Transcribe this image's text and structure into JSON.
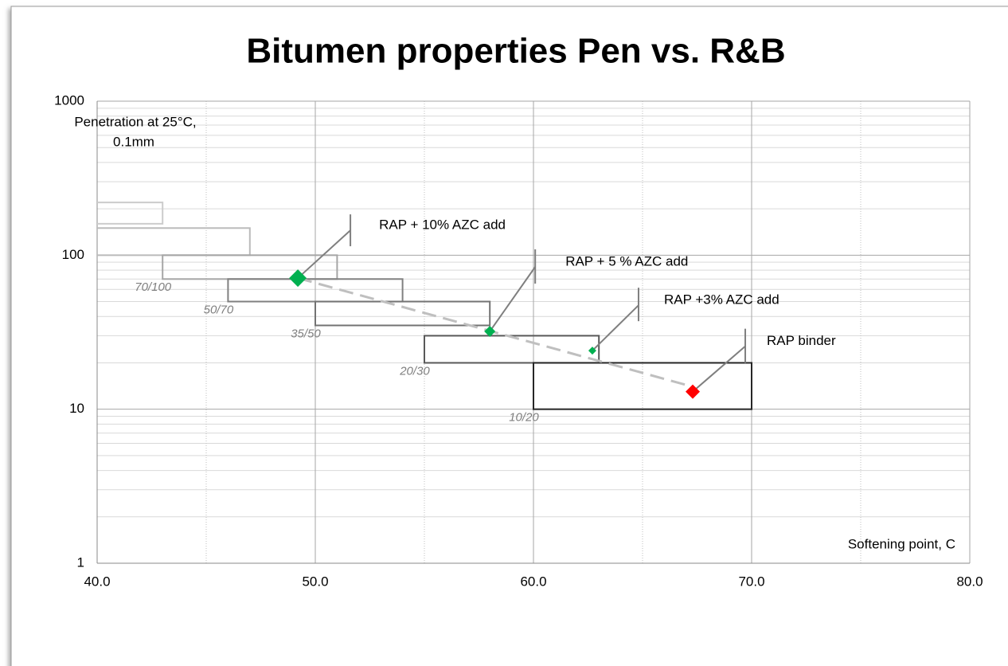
{
  "chart_data": {
    "type": "scatter",
    "title": "Bitumen properties Pen vs. R&B",
    "xlabel": "Softening point, C",
    "ylabel": [
      "Penetration at 25°C,",
      "0.1mm"
    ],
    "xlim": [
      40,
      80
    ],
    "ylim": [
      1,
      1000
    ],
    "ylog": true,
    "xticks": [
      {
        "value": 40,
        "label": "40.0"
      },
      {
        "value": 50,
        "label": "50.0"
      },
      {
        "value": 60,
        "label": "60.0"
      },
      {
        "value": 70,
        "label": "70.0"
      },
      {
        "value": 80,
        "label": "80.0"
      }
    ],
    "xminor": [
      45,
      55,
      65,
      75
    ],
    "yticks": [
      1,
      10,
      100,
      1000
    ],
    "yminor": [
      2,
      3,
      4,
      5,
      6,
      7,
      8,
      9,
      20,
      30,
      40,
      50,
      60,
      70,
      80,
      90,
      200,
      300,
      400,
      500,
      600,
      700,
      800,
      900
    ],
    "grid": true,
    "grades": [
      {
        "name": null,
        "x": [
          35,
          43
        ],
        "y": [
          160,
          220
        ],
        "color": "#cccccc"
      },
      {
        "name": null,
        "x": [
          39,
          47
        ],
        "y": [
          100,
          150
        ],
        "color": "#bbbbbb"
      },
      {
        "name": "70/100",
        "x": [
          43,
          51
        ],
        "y": [
          70,
          100
        ],
        "color": "#a6a6a6"
      },
      {
        "name": "50/70",
        "x": [
          46,
          54
        ],
        "y": [
          50,
          70
        ],
        "color": "#808080"
      },
      {
        "name": "35/50",
        "x": [
          50,
          58
        ],
        "y": [
          35,
          50
        ],
        "color": "#737373"
      },
      {
        "name": "20/30",
        "x": [
          55,
          63
        ],
        "y": [
          20,
          30
        ],
        "color": "#595959"
      },
      {
        "name": "10/20",
        "x": [
          60,
          70
        ],
        "y": [
          10,
          20
        ],
        "color": "#262626"
      }
    ],
    "points": {
      "x": [
        49.2,
        58.0,
        62.7,
        67.3
      ],
      "values": [
        71,
        32,
        24,
        13
      ],
      "colors": [
        "#00b050",
        "#00b050",
        "#00b050",
        "#ff0000"
      ],
      "sizes": [
        11,
        7,
        5,
        9
      ],
      "labels": [
        "RAP + 10% AZC add",
        "RAP + 5 % AZC add",
        "RAP +3% AZC add",
        "RAP binder"
      ]
    },
    "trend": {
      "x": [
        49.2,
        67.3
      ],
      "values": [
        71,
        14
      ],
      "color": "#bfbfbf"
    }
  }
}
